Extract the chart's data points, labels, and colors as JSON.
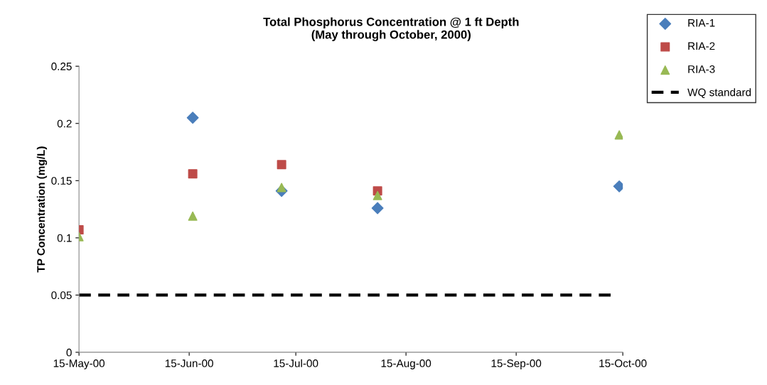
{
  "chart_data": {
    "type": "scatter",
    "title": "Total Phosphorus Concentration @ 1 ft Depth\n(May through October, 2000)",
    "ylabel": "TP Concentration (mg/L)",
    "series": [
      {
        "name": "RIA-1",
        "color": "#4a7ebb",
        "marker": "diamond",
        "x": [
          "2000-06-16",
          "2000-07-11",
          "2000-08-07",
          "2000-10-14"
        ],
        "values": [
          0.205,
          0.141,
          0.126,
          0.145
        ]
      },
      {
        "name": "RIA-2",
        "color": "#be4b48",
        "marker": "square",
        "x": [
          "2000-05-15",
          "2000-06-16",
          "2000-07-11",
          "2000-08-07"
        ],
        "values": [
          0.107,
          0.156,
          0.164,
          0.141
        ]
      },
      {
        "name": "RIA-3",
        "color": "#98b954",
        "marker": "triangle",
        "x": [
          "2000-05-15",
          "2000-06-16",
          "2000-07-11",
          "2000-08-07",
          "2000-10-14"
        ],
        "values": [
          0.101,
          0.119,
          0.144,
          0.137,
          0.19
        ]
      },
      {
        "name": "WQ standard",
        "type": "line",
        "color": "#000000",
        "line_style": "dashed",
        "marker": "none",
        "x": [
          "2000-05-15",
          "2000-10-12"
        ],
        "values": [
          0.05,
          0.05
        ]
      }
    ],
    "xlim": [
      "2000-05-15",
      "2000-10-15"
    ],
    "xticks": [
      {
        "value": "2000-05-15",
        "label": "15-May-00"
      },
      {
        "value": "2000-06-15",
        "label": "15-Jun-00"
      },
      {
        "value": "2000-07-15",
        "label": "15-Jul-00"
      },
      {
        "value": "2000-08-15",
        "label": "15-Aug-00"
      },
      {
        "value": "2000-09-15",
        "label": "15-Sep-00"
      },
      {
        "value": "2000-10-15",
        "label": "15-Oct-00"
      }
    ],
    "ylim": [
      0,
      0.25
    ],
    "yticks": [
      0,
      0.05,
      0.1,
      0.15,
      0.2,
      0.25
    ],
    "grid": false,
    "legend": "top right"
  }
}
